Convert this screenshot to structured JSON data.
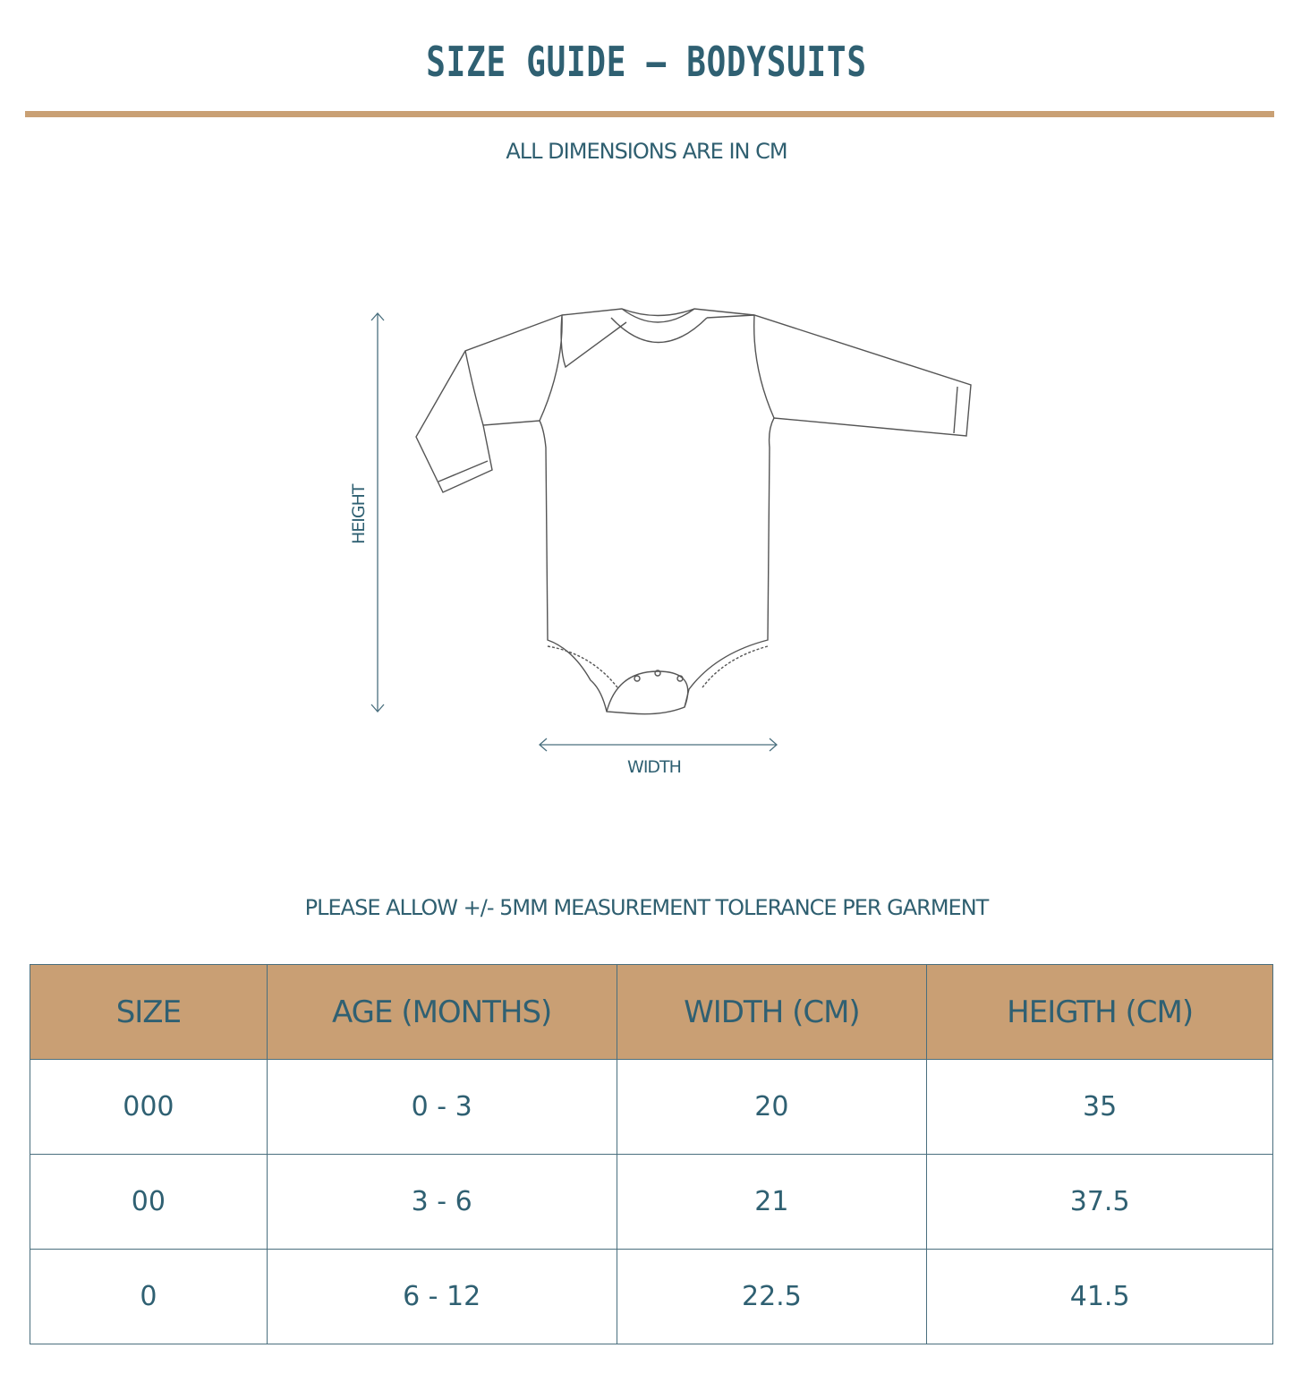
{
  "title": "SIZE GUIDE – BODYSUITS",
  "subtitle": "ALL DIMENSIONS ARE IN CM",
  "diagram": {
    "height_label": "HEIGHT",
    "width_label": "WIDTH"
  },
  "tolerance_note": "PLEASE ALLOW +/- 5MM MEASUREMENT TOLERANCE PER GARMENT",
  "colors": {
    "text": "#2f6072",
    "accent": "#c9a074"
  },
  "table": {
    "headers": [
      "SIZE",
      "AGE (MONTHS)",
      "WIDTH (CM)",
      "HEIGTH (CM)"
    ],
    "rows": [
      [
        "000",
        "0 - 3",
        "20",
        "35"
      ],
      [
        "00",
        "3 - 6",
        "21",
        "37.5"
      ],
      [
        "0",
        "6 - 12",
        "22.5",
        "41.5"
      ]
    ]
  }
}
